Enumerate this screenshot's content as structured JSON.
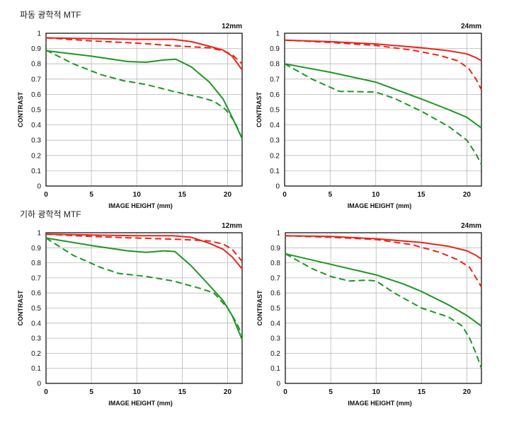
{
  "sections": [
    {
      "title": "파동 광학적 MTF"
    },
    {
      "title": "기하 광학적 MTF"
    }
  ],
  "colors": {
    "sagittal_red": "#e8251c",
    "meridional_green": "#1e9623",
    "grid": "#b8b8b8",
    "axis": "#000000"
  },
  "chart_data": [
    {
      "type": "line",
      "section": 0,
      "title": "12mm",
      "xlabel": "IMAGE HEIGHT (mm)",
      "ylabel": "CONTRAST",
      "xlim": [
        0,
        21.6
      ],
      "ylim": [
        0,
        1
      ],
      "xticks": [
        0,
        5,
        10,
        15,
        20
      ],
      "yticks": [
        0,
        0.1,
        0.2,
        0.3,
        0.4,
        0.5,
        0.6,
        0.7,
        0.8,
        0.9,
        1
      ],
      "ytick_labels": [
        "0",
        "0.1",
        "0.2",
        "0.3",
        "0.4",
        "0.5",
        "0.6",
        "0.7",
        "0.8",
        "0.9",
        "1"
      ],
      "grid": true,
      "series": [
        {
          "color": "red",
          "style": "solid",
          "points": [
            [
              0,
              0.97
            ],
            [
              5,
              0.965
            ],
            [
              10,
              0.96
            ],
            [
              14,
              0.96
            ],
            [
              16,
              0.945
            ],
            [
              18,
              0.915
            ],
            [
              19.5,
              0.89
            ],
            [
              20.5,
              0.85
            ],
            [
              21.6,
              0.76
            ]
          ]
        },
        {
          "color": "red",
          "style": "dashed",
          "points": [
            [
              0,
              0.97
            ],
            [
              5,
              0.95
            ],
            [
              10,
              0.935
            ],
            [
              15,
              0.915
            ],
            [
              18,
              0.905
            ],
            [
              19.5,
              0.885
            ],
            [
              20.5,
              0.86
            ],
            [
              21.6,
              0.8
            ]
          ]
        },
        {
          "color": "green",
          "style": "solid",
          "points": [
            [
              0,
              0.885
            ],
            [
              5,
              0.85
            ],
            [
              9,
              0.815
            ],
            [
              11,
              0.81
            ],
            [
              13,
              0.825
            ],
            [
              14.3,
              0.83
            ],
            [
              16,
              0.78
            ],
            [
              18,
              0.68
            ],
            [
              19.5,
              0.57
            ],
            [
              20.5,
              0.45
            ],
            [
              21.6,
              0.31
            ]
          ]
        },
        {
          "color": "green",
          "style": "dashed",
          "points": [
            [
              0,
              0.89
            ],
            [
              3,
              0.8
            ],
            [
              6,
              0.73
            ],
            [
              8.5,
              0.69
            ],
            [
              11,
              0.665
            ],
            [
              14,
              0.62
            ],
            [
              17,
              0.58
            ],
            [
              18.5,
              0.555
            ],
            [
              19.8,
              0.5
            ],
            [
              20.8,
              0.42
            ],
            [
              21.6,
              0.31
            ]
          ]
        }
      ]
    },
    {
      "type": "line",
      "section": 0,
      "title": "24mm",
      "xlabel": "IMAGE HEIGHT (mm)",
      "ylabel": "CONTRAST",
      "xlim": [
        0,
        21.6
      ],
      "ylim": [
        0,
        1
      ],
      "xticks": [
        0,
        5,
        10,
        15,
        20
      ],
      "yticks": [
        0,
        0.1,
        0.2,
        0.3,
        0.4,
        0.5,
        0.6,
        0.7,
        0.8,
        0.9,
        1
      ],
      "ytick_labels": [
        "0",
        "0.1",
        "0.2",
        "0.3",
        "0.4",
        "0.5",
        "0.6",
        "0.7",
        "0.8",
        "0.9",
        "1"
      ],
      "grid": true,
      "series": [
        {
          "color": "red",
          "style": "solid",
          "points": [
            [
              0,
              0.955
            ],
            [
              5,
              0.945
            ],
            [
              10,
              0.93
            ],
            [
              15,
              0.905
            ],
            [
              18,
              0.885
            ],
            [
              20,
              0.865
            ],
            [
              21,
              0.84
            ],
            [
              21.6,
              0.82
            ]
          ]
        },
        {
          "color": "red",
          "style": "dashed",
          "points": [
            [
              0,
              0.955
            ],
            [
              5,
              0.94
            ],
            [
              10,
              0.92
            ],
            [
              14,
              0.89
            ],
            [
              17,
              0.855
            ],
            [
              19,
              0.82
            ],
            [
              20.2,
              0.77
            ],
            [
              21,
              0.7
            ],
            [
              21.6,
              0.63
            ]
          ]
        },
        {
          "color": "green",
          "style": "solid",
          "points": [
            [
              0,
              0.8
            ],
            [
              5,
              0.745
            ],
            [
              10,
              0.68
            ],
            [
              15,
              0.57
            ],
            [
              18,
              0.5
            ],
            [
              20,
              0.45
            ],
            [
              21.6,
              0.38
            ]
          ]
        },
        {
          "color": "green",
          "style": "dashed",
          "points": [
            [
              0,
              0.8
            ],
            [
              3,
              0.7
            ],
            [
              6,
              0.62
            ],
            [
              8,
              0.618
            ],
            [
              10,
              0.615
            ],
            [
              12,
              0.575
            ],
            [
              15,
              0.49
            ],
            [
              18,
              0.39
            ],
            [
              20,
              0.3
            ],
            [
              21,
              0.21
            ],
            [
              21.6,
              0.14
            ]
          ]
        }
      ]
    },
    {
      "type": "line",
      "section": 1,
      "title": "12mm",
      "xlabel": "IMAGE HEIGHT (mm)",
      "ylabel": "CONTRAST",
      "xlim": [
        0,
        21.6
      ],
      "ylim": [
        0,
        1
      ],
      "xticks": [
        0,
        5,
        10,
        15,
        20
      ],
      "yticks": [
        0,
        0.1,
        0.2,
        0.3,
        0.4,
        0.5,
        0.6,
        0.7,
        0.8,
        0.9,
        1
      ],
      "ytick_labels": [
        "0",
        "0.1",
        "0.2",
        "0.3",
        "0.4",
        "0.5",
        "0.6",
        "0.7",
        "0.8",
        "0.9",
        "1"
      ],
      "grid": true,
      "series": [
        {
          "color": "red",
          "style": "solid",
          "points": [
            [
              0,
              0.99
            ],
            [
              5,
              0.985
            ],
            [
              10,
              0.98
            ],
            [
              14,
              0.98
            ],
            [
              16,
              0.97
            ],
            [
              18,
              0.93
            ],
            [
              19.5,
              0.89
            ],
            [
              20.5,
              0.84
            ],
            [
              21.6,
              0.76
            ]
          ]
        },
        {
          "color": "red",
          "style": "dashed",
          "points": [
            [
              0,
              0.99
            ],
            [
              5,
              0.975
            ],
            [
              10,
              0.965
            ],
            [
              15,
              0.955
            ],
            [
              18,
              0.945
            ],
            [
              19.5,
              0.925
            ],
            [
              20.5,
              0.89
            ],
            [
              21.6,
              0.81
            ]
          ]
        },
        {
          "color": "green",
          "style": "solid",
          "points": [
            [
              0,
              0.965
            ],
            [
              5,
              0.915
            ],
            [
              9,
              0.88
            ],
            [
              11,
              0.87
            ],
            [
              13,
              0.88
            ],
            [
              14.2,
              0.875
            ],
            [
              16,
              0.78
            ],
            [
              18,
              0.65
            ],
            [
              19.5,
              0.55
            ],
            [
              20.5,
              0.45
            ],
            [
              21.6,
              0.29
            ]
          ]
        },
        {
          "color": "green",
          "style": "dashed",
          "points": [
            [
              0,
              0.965
            ],
            [
              3,
              0.85
            ],
            [
              6,
              0.77
            ],
            [
              8,
              0.73
            ],
            [
              11,
              0.71
            ],
            [
              14,
              0.68
            ],
            [
              17,
              0.63
            ],
            [
              18.5,
              0.6
            ],
            [
              20,
              0.5
            ],
            [
              21,
              0.4
            ],
            [
              21.6,
              0.32
            ]
          ]
        }
      ]
    },
    {
      "type": "line",
      "section": 1,
      "title": "24mm",
      "xlabel": "IMAGE HEIGHT (mm)",
      "ylabel": "CONTRAST",
      "xlim": [
        0,
        21.6
      ],
      "ylim": [
        0,
        1
      ],
      "xticks": [
        0,
        5,
        10,
        15,
        20
      ],
      "yticks": [
        0,
        0.1,
        0.2,
        0.3,
        0.4,
        0.5,
        0.6,
        0.7,
        0.8,
        0.9,
        1
      ],
      "ytick_labels": [
        "0",
        "0.1",
        "0.2",
        "0.3",
        "0.4",
        "0.5",
        "0.6",
        "0.7",
        "0.8",
        "0.9",
        "1"
      ],
      "grid": true,
      "series": [
        {
          "color": "red",
          "style": "solid",
          "points": [
            [
              0,
              0.98
            ],
            [
              5,
              0.975
            ],
            [
              10,
              0.96
            ],
            [
              15,
              0.935
            ],
            [
              18,
              0.91
            ],
            [
              20,
              0.88
            ],
            [
              21,
              0.85
            ],
            [
              21.6,
              0.825
            ]
          ]
        },
        {
          "color": "red",
          "style": "dashed",
          "points": [
            [
              0,
              0.98
            ],
            [
              5,
              0.97
            ],
            [
              10,
              0.955
            ],
            [
              14,
              0.92
            ],
            [
              17,
              0.87
            ],
            [
              19,
              0.82
            ],
            [
              20.3,
              0.77
            ],
            [
              21,
              0.7
            ],
            [
              21.6,
              0.64
            ]
          ]
        },
        {
          "color": "green",
          "style": "solid",
          "points": [
            [
              0,
              0.86
            ],
            [
              5,
              0.79
            ],
            [
              10,
              0.72
            ],
            [
              13,
              0.66
            ],
            [
              15,
              0.61
            ],
            [
              18,
              0.52
            ],
            [
              20,
              0.45
            ],
            [
              21.6,
              0.38
            ]
          ]
        },
        {
          "color": "green",
          "style": "dashed",
          "points": [
            [
              0,
              0.86
            ],
            [
              3,
              0.76
            ],
            [
              5,
              0.71
            ],
            [
              7,
              0.68
            ],
            [
              9,
              0.685
            ],
            [
              10,
              0.68
            ],
            [
              12,
              0.6
            ],
            [
              15,
              0.5
            ],
            [
              18,
              0.44
            ],
            [
              19.5,
              0.38
            ],
            [
              20.3,
              0.3
            ],
            [
              21,
              0.2
            ],
            [
              21.6,
              0.1
            ]
          ]
        }
      ]
    }
  ]
}
